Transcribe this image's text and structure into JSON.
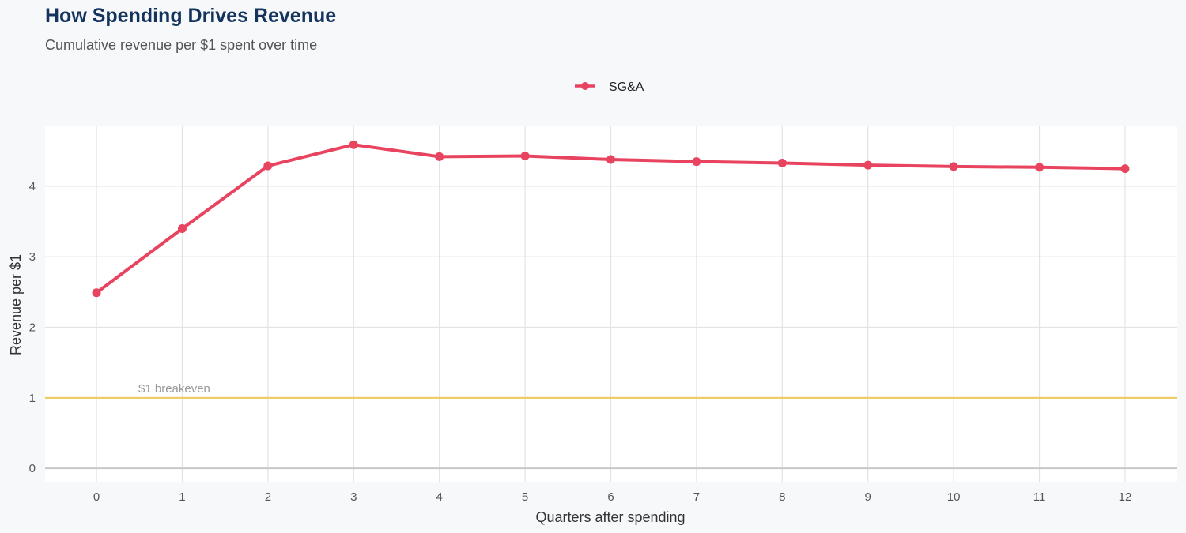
{
  "title": "How Spending Drives Revenue",
  "subtitle": "Cumulative revenue per $1 spent over time",
  "chart_data": {
    "type": "line",
    "title": "How Spending Drives Revenue",
    "subtitle": "Cumulative revenue per $1 spent over time",
    "xlabel": "Quarters after spending",
    "ylabel": "Revenue per $1",
    "x": [
      0,
      1,
      2,
      3,
      4,
      5,
      6,
      7,
      8,
      9,
      10,
      11,
      12
    ],
    "series": [
      {
        "name": "SG&A",
        "color": "#e8435f",
        "values": [
          2.49,
          3.4,
          4.29,
          4.59,
          4.42,
          4.43,
          4.38,
          4.35,
          4.33,
          4.3,
          4.28,
          4.27,
          4.25
        ]
      }
    ],
    "xlim": [
      -0.6,
      12.6
    ],
    "ylim": [
      -0.2,
      4.85
    ],
    "xticks": [
      "0",
      "1",
      "2",
      "3",
      "4",
      "5",
      "6",
      "7",
      "8",
      "9",
      "10",
      "11",
      "12"
    ],
    "yticks": [
      "0",
      "1",
      "2",
      "3",
      "4"
    ],
    "grid": true,
    "legend": "top-center",
    "reference_line": {
      "y": 1,
      "label": "$1 breakeven",
      "color": "#f0c85a"
    }
  }
}
